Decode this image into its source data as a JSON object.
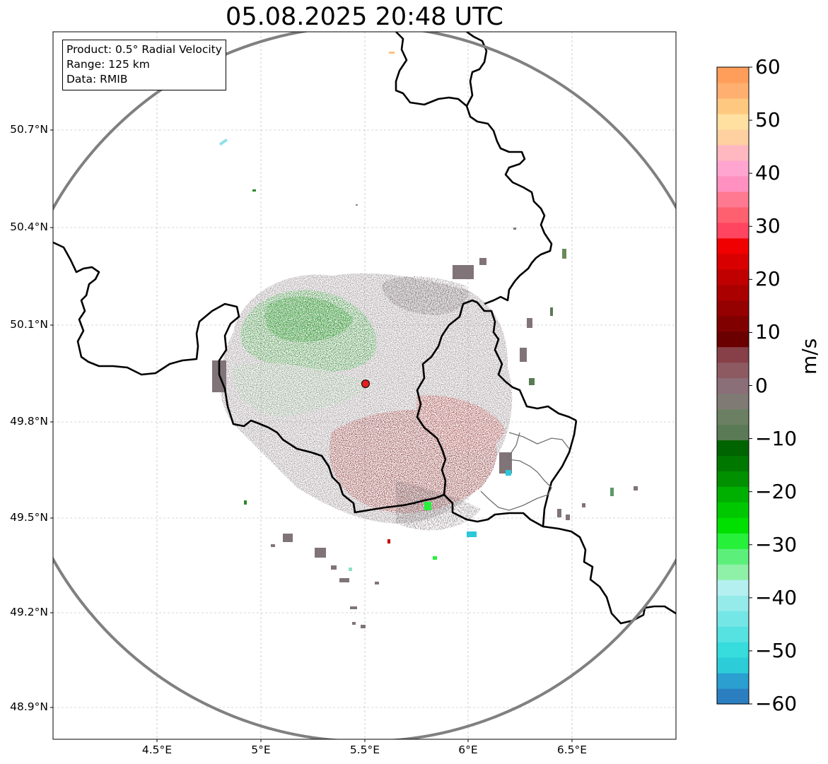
{
  "title": "05.08.2025 20:48 UTC",
  "info": {
    "product": "Product: 0.5° Radial Velocity",
    "range": "Range: 125 km",
    "data": "Data: RMIB"
  },
  "axes": {
    "lat_labels": [
      "50.7°N",
      "50.4°N",
      "50.1°N",
      "49.8°N",
      "49.5°N",
      "49.2°N",
      "48.9°N"
    ],
    "lon_labels": [
      "4.5°E",
      "5°E",
      "5.5°E",
      "6°E",
      "6.5°E"
    ]
  },
  "colorbar": {
    "unit": "m/s",
    "ticks": [
      "60",
      "50",
      "40",
      "30",
      "20",
      "10",
      "0",
      "−10",
      "−20",
      "−30",
      "−40",
      "−50",
      "−60"
    ],
    "min": -60,
    "max": 60,
    "colors": [
      "#2b7fc1",
      "#2a9fd0",
      "#2ccdd8",
      "#37dcdc",
      "#57e2e2",
      "#75e6e6",
      "#95eaea",
      "#b5f0f0",
      "#8ff0a8",
      "#5cf07a",
      "#26f03a",
      "#00e000",
      "#00c800",
      "#00b000",
      "#009000",
      "#007800",
      "#006400",
      "#5a7a55",
      "#6b8062",
      "#807a75",
      "#8a6e78",
      "#8e5a62",
      "#874048",
      "#6a0000",
      "#800000",
      "#950000",
      "#aa0000",
      "#c00000",
      "#d80000",
      "#f00000",
      "#ff4560",
      "#ff6070",
      "#ff7a90",
      "#ff90c0",
      "#ffa5cf",
      "#ffb8c0",
      "#ffd0a0",
      "#ffe0a0",
      "#ffc880",
      "#ffb070",
      "#ff9e5a"
    ],
    "accent_colors": {
      "range_ring": "#808080",
      "radar_site": "#e02020"
    }
  },
  "radar_site": {
    "lon": 5.505,
    "lat": 49.914
  },
  "range_km": 125
}
